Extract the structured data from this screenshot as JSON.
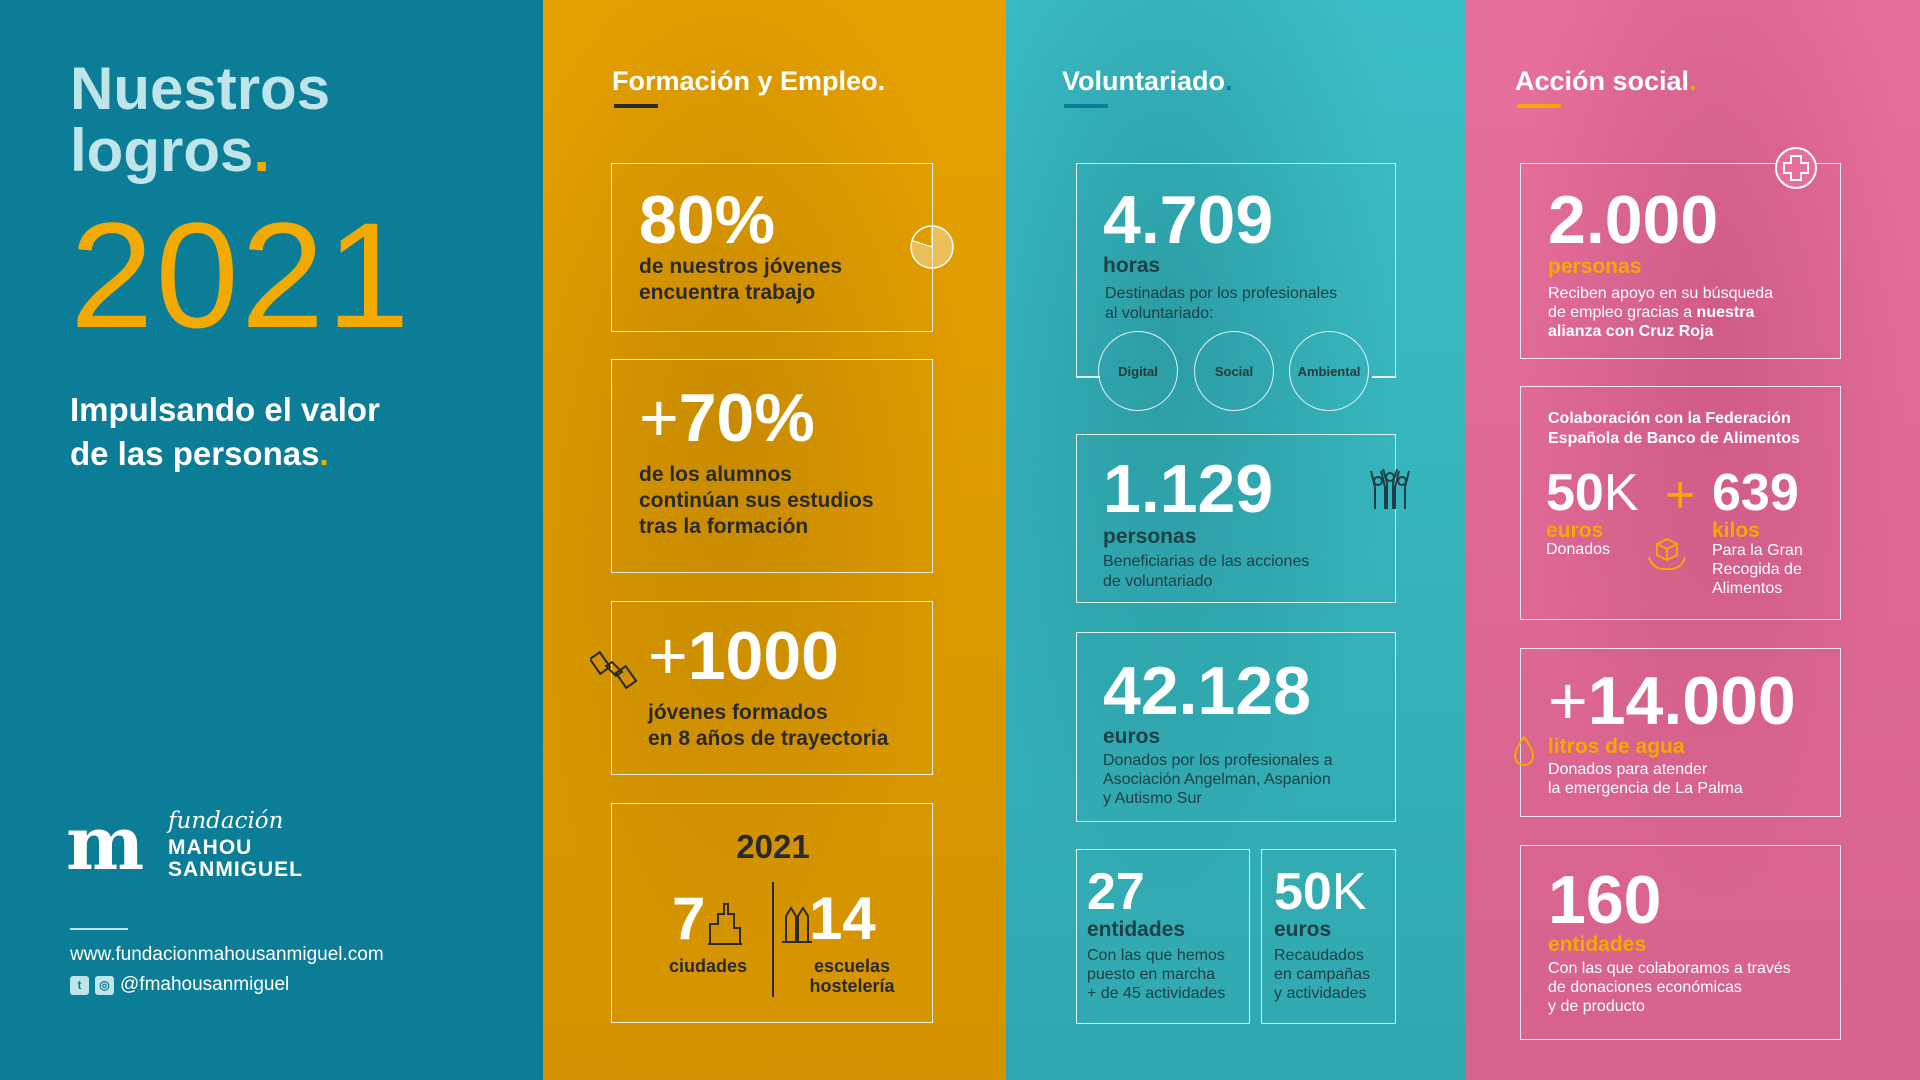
{
  "intro": {
    "title_line1": "Nuestros",
    "title_line2": "logros",
    "year": "2021",
    "subtitle_line1": "Impulsando el valor",
    "subtitle_line2": "de las personas",
    "logo": {
      "mark": "m",
      "fundacion": "fundación",
      "name_line1": "MAHOU",
      "name_line2": "SANMIGUEL"
    },
    "website": "www.fundacionmahousanmiguel.com",
    "handle": "@fmahousanmiguel"
  },
  "formacion": {
    "title": "Formación y Empleo",
    "stat1": {
      "value": "80%",
      "text_line1": "de nuestros jóvenes",
      "text_line2": "encuentra trabajo"
    },
    "stat2": {
      "prefix": "+",
      "value": "70%",
      "text_line1": "de los alumnos",
      "text_line2": "continúan sus estudios",
      "text_line3": "tras la formación"
    },
    "stat3": {
      "prefix": "+",
      "value": "1000",
      "text_line1": "jóvenes formados",
      "text_line2": "en 8 años de trayectoria"
    },
    "stat4": {
      "year": "2021",
      "left_value": "7",
      "left_label": "ciudades",
      "right_value": "14",
      "right_label_line1": "escuelas",
      "right_label_line2": "hostelería"
    },
    "pie_fraction": 0.8,
    "icons": [
      "pie-chart-icon",
      "handshake-icon",
      "city-icon",
      "school-icon"
    ]
  },
  "voluntariado": {
    "title": "Voluntariado",
    "stat1": {
      "value": "4.709",
      "unit": "horas",
      "text_line1": "Destinadas por los profesionales",
      "text_line2": "al voluntariado:",
      "tags": [
        "Digital",
        "Social",
        "Ambiental"
      ]
    },
    "stat2": {
      "value": "1.129",
      "unit": "personas",
      "text_line1": "Beneficiarias de las acciones",
      "text_line2": "de voluntariado"
    },
    "stat3": {
      "value": "42.128",
      "unit": "euros",
      "text_line1": "Donados por los profesionales a",
      "text_line2": "Asociación Angelman, Aspanion",
      "text_line3": "y Autismo Sur"
    },
    "stat4": {
      "value": "27",
      "unit": "entidades",
      "text_line1": "Con las que hemos",
      "text_line2": "puesto en marcha",
      "text_line3": "+ de 45 actividades"
    },
    "stat5": {
      "value": "50",
      "suffix": "K",
      "unit": "euros",
      "text_line1": "Recaudados",
      "text_line2": "en campañas",
      "text_line3": "y actividades"
    },
    "icons": [
      "people-raising-hands-icon"
    ]
  },
  "accion": {
    "title": "Acción social",
    "stat1": {
      "value": "2.000",
      "unit": "personas",
      "text_line1": "Reciben apoyo en su búsqueda",
      "text_line2": "de empleo gracias a",
      "text_bold_a": "nuestra",
      "text_bold_b": "alianza con Cruz Roja"
    },
    "stat2": {
      "heading_line1": "Colaboración con la Federación",
      "heading_line2": "Española de Banco de Alimentos",
      "left_value": "50",
      "left_suffix": "K",
      "plus": "+",
      "right_value": "639",
      "left_unit": "euros",
      "left_label": "Donados",
      "right_unit": "kilos",
      "right_label_line1": "Para la Gran",
      "right_label_line2": "Recogida de",
      "right_label_line3": "Alimentos"
    },
    "stat3": {
      "prefix": "+",
      "value": "14.000",
      "unit": "litros de agua",
      "text_line1": "Donados para atender",
      "text_line2": "la emergencia de La Palma"
    },
    "stat4": {
      "value": "160",
      "unit": "entidades",
      "text_line1": "Con las que colaboramos a través",
      "text_line2": "de donaciones económicas",
      "text_line3": "y de producto"
    },
    "icons": [
      "red-cross-icon",
      "hands-box-icon",
      "water-drop-icon"
    ]
  },
  "colors": {
    "teal_dark": "#0b7d96",
    "yellow": "#f2a900",
    "teal_light": "#3bbfc6",
    "pink": "#e76f9b",
    "dark_text": "#2a2a2a"
  }
}
